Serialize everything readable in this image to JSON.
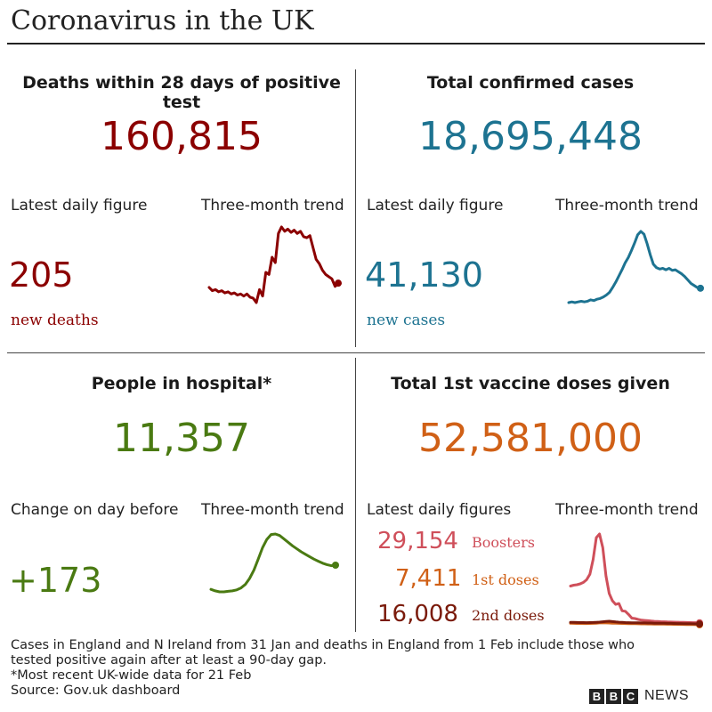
{
  "title": "Coronavirus in the UK",
  "panels": {
    "deaths": {
      "title": "Deaths within 28 days of positive test",
      "total": "160,815",
      "latest_label": "Latest daily figure",
      "trend_label": "Three-month trend",
      "latest_value": "205",
      "latest_unit": "new deaths",
      "color": "#8b0000"
    },
    "cases": {
      "title": "Total confirmed cases",
      "total": "18,695,448",
      "latest_label": "Latest daily figure",
      "trend_label": "Three-month trend",
      "latest_value": "41,130",
      "latest_unit": "new cases",
      "color": "#1d7391"
    },
    "hospital": {
      "title": "People in hospital*",
      "total": "11,357",
      "latest_label": "Change on day before",
      "trend_label": "Three-month trend",
      "latest_value": "+173",
      "color": "#4a7a12"
    },
    "vaccines": {
      "title": "Total 1st vaccine doses given",
      "total": "52,581,000",
      "latest_label": "Latest daily figures",
      "trend_label": "Three-month trend",
      "color": "#d06016",
      "rows": [
        {
          "value": "29,154",
          "label": "Boosters",
          "color": "#cf4f5a"
        },
        {
          "value": "7,411",
          "label": "1st doses",
          "color": "#d06016"
        },
        {
          "value": "16,008",
          "label": "2nd doses",
          "color": "#7a1a0a"
        }
      ]
    }
  },
  "footnotes": [
    "Cases in England and N Ireland from 31 Jan and deaths in England from 1 Feb include those who",
    "tested positive again after at least a 90-day gap.",
    "*Most recent UK-wide data for 21 Feb",
    "Source: Gov.uk dashboard"
  ],
  "brand": {
    "letters": [
      "B",
      "B",
      "C"
    ],
    "word": "NEWS"
  },
  "chart_data": [
    {
      "type": "line",
      "name": "deaths-trend",
      "color": "#8b0000",
      "values": [
        118,
        115,
        116,
        114,
        115,
        113,
        114,
        112,
        113,
        111,
        112,
        110,
        112,
        109,
        108,
        104,
        116,
        110,
        132,
        130,
        146,
        141,
        168,
        174,
        170,
        172,
        169,
        171,
        168,
        170,
        165,
        164,
        166,
        155,
        144,
        140,
        134,
        130,
        128,
        126,
        119,
        122
      ]
    },
    {
      "type": "line",
      "name": "cases-trend",
      "color": "#1d7391",
      "values": [
        46,
        47,
        46,
        47,
        48,
        47,
        48,
        50,
        49,
        51,
        52,
        54,
        57,
        61,
        68,
        76,
        85,
        94,
        104,
        112,
        122,
        133,
        145,
        150,
        146,
        132,
        116,
        102,
        97,
        95,
        96,
        94,
        96,
        93,
        94,
        91,
        88,
        84,
        79,
        74,
        71,
        68,
        67
      ]
    },
    {
      "type": "line",
      "name": "hospital-trend",
      "color": "#4a7a12",
      "values": [
        7.8,
        7.5,
        7.3,
        7.3,
        7.4,
        7.5,
        7.7,
        8.1,
        8.8,
        10.0,
        11.7,
        13.9,
        16.2,
        17.9,
        18.9,
        19.0,
        18.7,
        18.0,
        17.3,
        16.6,
        16.0,
        15.4,
        14.9,
        14.4,
        13.9,
        13.5,
        13.1,
        12.8,
        12.6,
        12.7
      ]
    },
    {
      "type": "line",
      "name": "vaccines-trend",
      "series": [
        {
          "name": "Boosters",
          "color": "#cf4f5a",
          "values": [
            430,
            440,
            445,
            455,
            470,
            500,
            560,
            720,
            960,
            1000,
            850,
            540,
            350,
            270,
            230,
            240,
            160,
            155,
            120,
            80,
            75,
            65,
            58,
            55,
            52,
            48,
            45,
            43,
            41,
            40,
            38,
            37,
            36,
            35,
            34,
            33,
            32,
            31,
            30,
            30,
            29
          ]
        },
        {
          "name": "1st doses",
          "color": "#d06016",
          "values": [
            24,
            23,
            22,
            22,
            21,
            21,
            22,
            23,
            25,
            27,
            27,
            27,
            26,
            25,
            24,
            23,
            22,
            21,
            20,
            19,
            19,
            18,
            17,
            17,
            16,
            16,
            15,
            15,
            14,
            14,
            13,
            13,
            12,
            12,
            11,
            11,
            10,
            10,
            9,
            8,
            7
          ]
        },
        {
          "name": "2nd doses",
          "color": "#7a1a0a",
          "values": [
            34,
            33,
            32,
            31,
            31,
            30,
            31,
            32,
            34,
            36,
            40,
            44,
            46,
            42,
            38,
            35,
            33,
            31,
            30,
            29,
            28,
            28,
            27,
            27,
            26,
            26,
            25,
            25,
            24,
            24,
            23,
            23,
            22,
            21,
            21,
            20,
            19,
            19,
            18,
            17,
            16
          ]
        }
      ]
    }
  ]
}
